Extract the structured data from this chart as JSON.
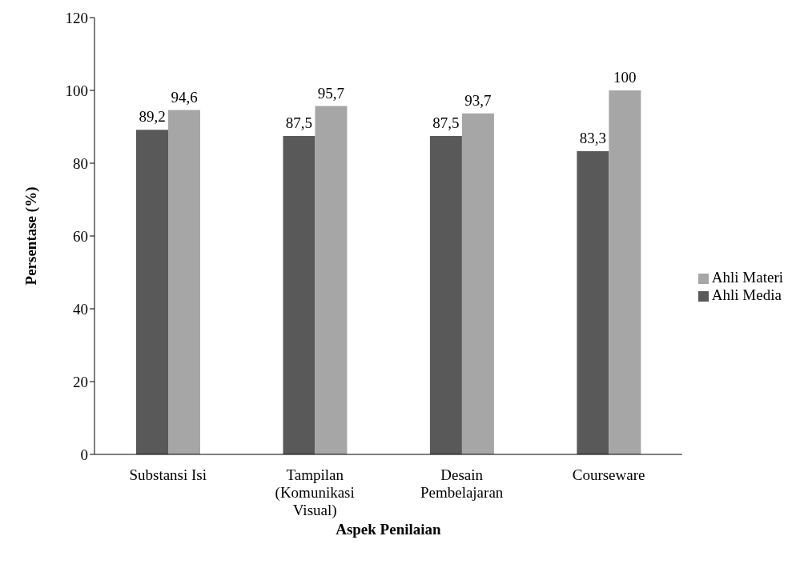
{
  "chart_data": {
    "type": "bar",
    "xlabel": "Aspek Penilaian",
    "ylabel": "Persentase (%)",
    "categories": [
      "Substansi Isi",
      "Tampilan (Komunikasi Visual)",
      "Desain Pembelajaran",
      "Courseware"
    ],
    "series": [
      {
        "name": "Ahli Media",
        "color": "#595959",
        "values": [
          89.2,
          87.5,
          87.5,
          83.3
        ],
        "value_labels": [
          "89,2",
          "87,5",
          "87,5",
          "83,3"
        ]
      },
      {
        "name": "Ahli Materi",
        "color": "#a6a6a6",
        "values": [
          94.6,
          95.7,
          93.7,
          100
        ],
        "value_labels": [
          "94,6",
          "95,7",
          "93,7",
          "100"
        ]
      }
    ],
    "ylim": [
      0,
      120
    ],
    "yticks": [
      0,
      20,
      40,
      60,
      80,
      100,
      120
    ],
    "grid": false,
    "legend": "right"
  }
}
